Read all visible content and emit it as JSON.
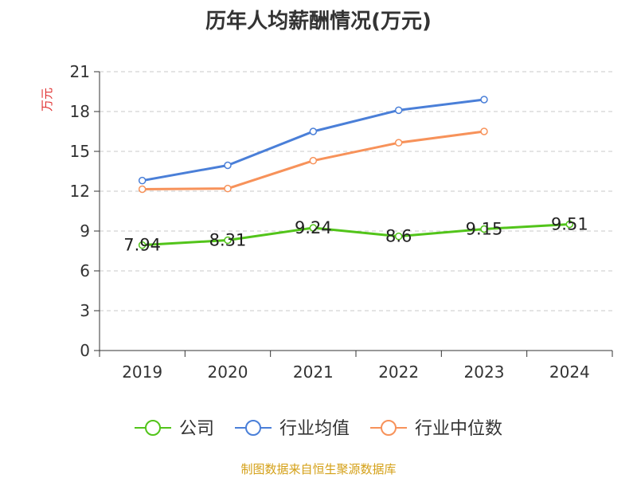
{
  "chart_data": {
    "type": "line",
    "title": "历年人均薪酬情况(万元)",
    "ylabel": "万元",
    "xlabel": "",
    "categories": [
      "2019",
      "2020",
      "2021",
      "2022",
      "2023",
      "2024"
    ],
    "ylim": [
      0,
      21
    ],
    "yticks": [
      0,
      3,
      6,
      9,
      12,
      15,
      18,
      21
    ],
    "grid": true,
    "legend_position": "bottom",
    "series": [
      {
        "name": "公司",
        "color": "#52c41a",
        "values": [
          7.94,
          8.31,
          9.24,
          8.6,
          9.15,
          9.51
        ],
        "labels": [
          "7.94",
          "8.31",
          "9.24",
          "8.6",
          "9.15",
          "9.51"
        ]
      },
      {
        "name": "行业均值",
        "color": "#4a7fd8",
        "values": [
          12.8,
          13.95,
          16.5,
          18.1,
          18.9,
          null
        ]
      },
      {
        "name": "行业中位数",
        "color": "#f7925a",
        "values": [
          12.15,
          12.2,
          14.3,
          15.65,
          16.5,
          null
        ]
      }
    ]
  },
  "footer": {
    "source": "制图数据来自恒生聚源数据库"
  }
}
